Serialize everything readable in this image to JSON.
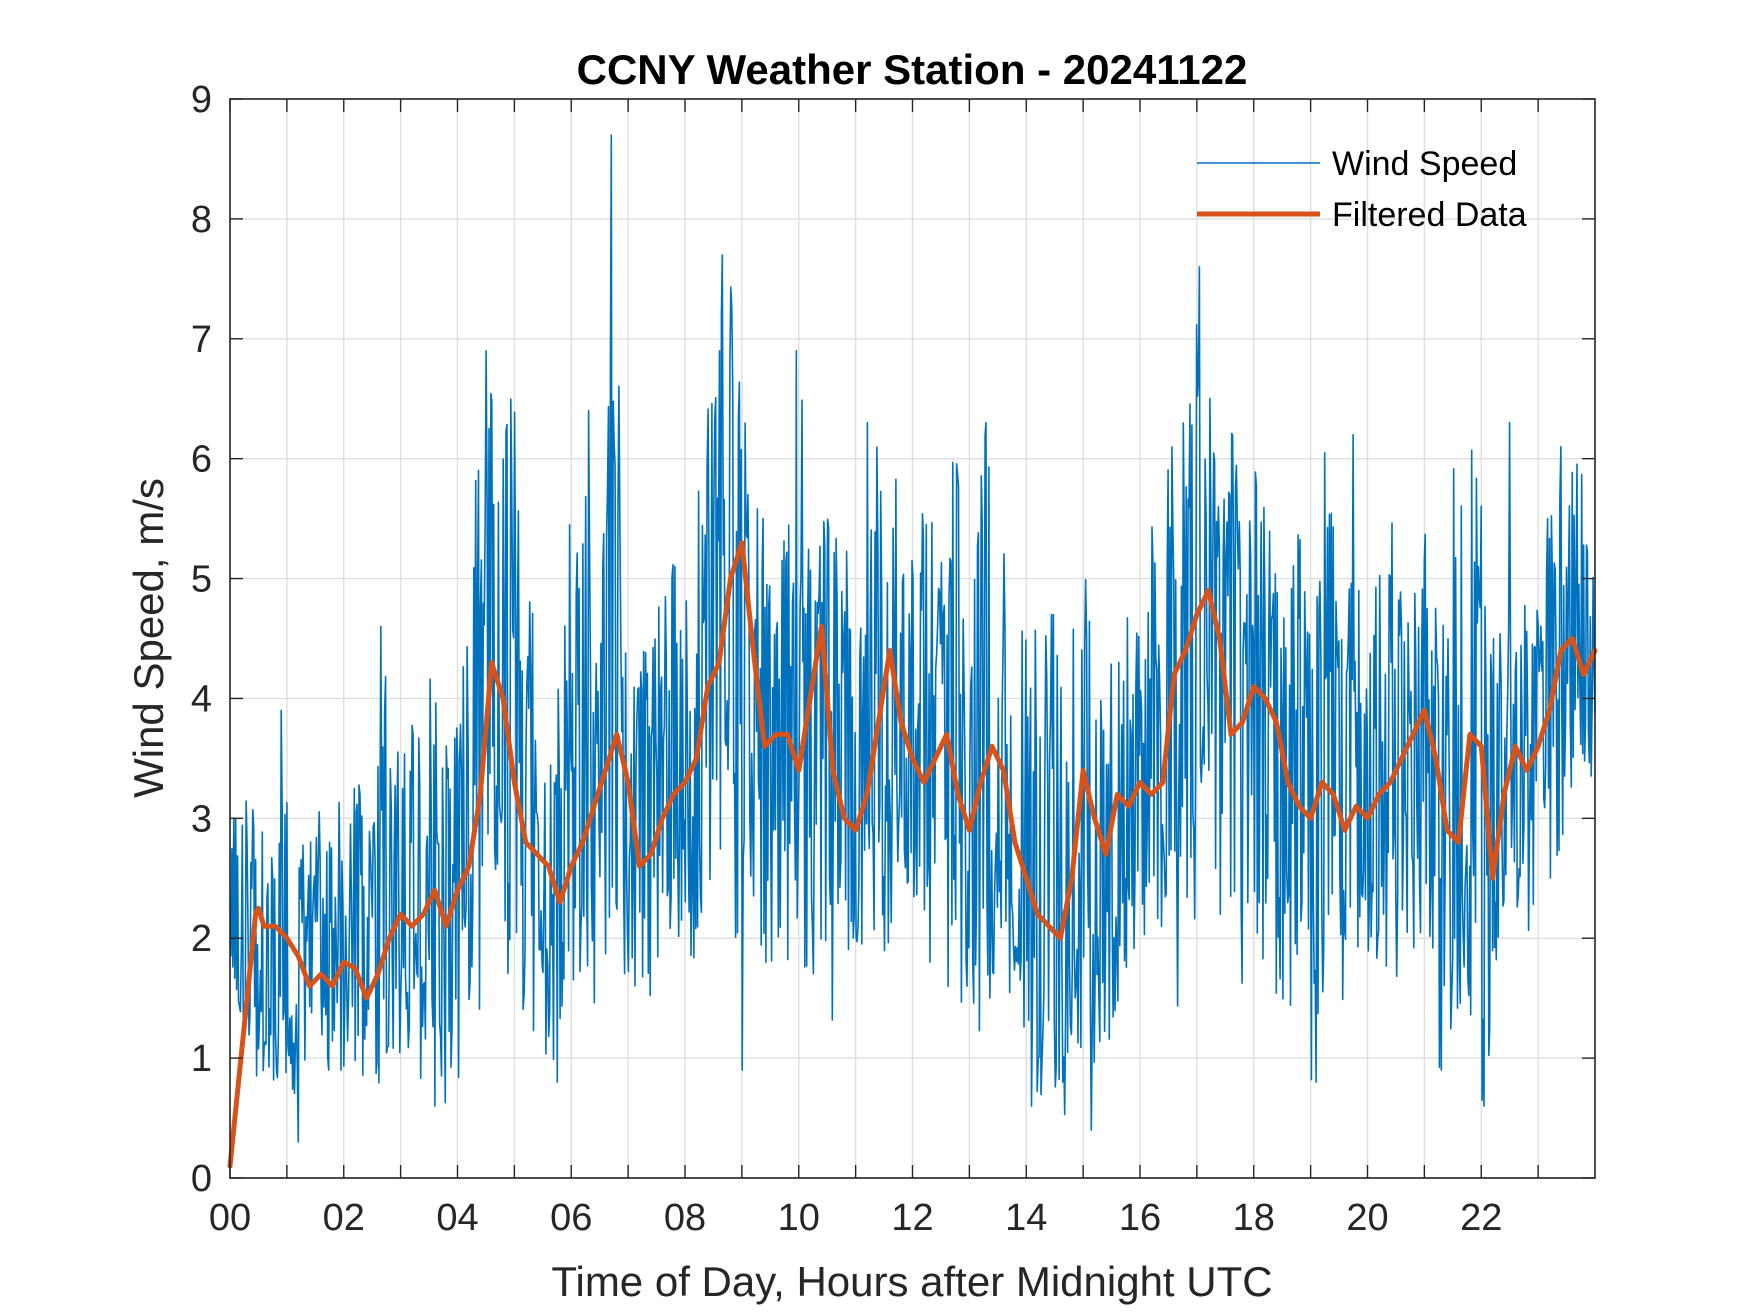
{
  "chart_data": {
    "type": "line",
    "title": "CCNY Weather Station - 20241122",
    "xlabel": "Time of Day, Hours after Midnight UTC",
    "ylabel": "Wind Speed, m/s",
    "xlim": [
      0,
      24
    ],
    "ylim": [
      0,
      9
    ],
    "xticks": [
      0,
      2,
      4,
      6,
      8,
      10,
      12,
      14,
      16,
      18,
      20,
      22
    ],
    "xtick_labels": [
      "00",
      "02",
      "04",
      "06",
      "08",
      "10",
      "12",
      "14",
      "16",
      "18",
      "20",
      "22"
    ],
    "yticks": [
      0,
      1,
      2,
      3,
      4,
      5,
      6,
      7,
      8,
      9
    ],
    "ytick_labels": [
      "0",
      "1",
      "2",
      "3",
      "4",
      "5",
      "6",
      "7",
      "8",
      "9"
    ],
    "grid": true,
    "legend_position": "top-right",
    "series": [
      {
        "name": "Wind Speed",
        "color": "#0072BD",
        "style": "thin",
        "envelope": {
          "x": [
            0,
            0.25,
            0.5,
            0.75,
            1.0,
            1.25,
            1.5,
            1.75,
            2.0,
            2.25,
            2.5,
            2.75,
            3.0,
            3.25,
            3.5,
            3.75,
            4.0,
            4.25,
            4.5,
            4.75,
            5.0,
            5.25,
            5.5,
            5.75,
            6.0,
            6.25,
            6.5,
            6.75,
            7.0,
            7.25,
            7.5,
            7.75,
            8.0,
            8.25,
            8.5,
            8.75,
            9.0,
            9.25,
            9.5,
            9.75,
            10.0,
            10.25,
            10.5,
            10.75,
            11.0,
            11.25,
            11.5,
            11.75,
            12.0,
            12.25,
            12.5,
            12.75,
            13.0,
            13.25,
            13.5,
            13.75,
            14.0,
            14.25,
            14.5,
            14.75,
            15.0,
            15.25,
            15.5,
            15.75,
            16.0,
            16.25,
            16.5,
            16.75,
            17.0,
            17.25,
            17.5,
            17.75,
            18.0,
            18.25,
            18.5,
            18.75,
            19.0,
            19.25,
            19.5,
            19.75,
            20.0,
            20.25,
            20.5,
            20.75,
            21.0,
            21.25,
            21.5,
            21.75,
            22.0,
            22.25,
            22.5,
            22.75,
            23.0,
            23.25,
            23.5,
            23.75,
            24.0
          ],
          "min": [
            1.9,
            1.2,
            0.8,
            0.6,
            0.9,
            0.5,
            0.9,
            0.9,
            0.9,
            0.8,
            0.7,
            0.9,
            1.0,
            0.9,
            0.7,
            0.6,
            0.8,
            1.3,
            1.5,
            1.4,
            1.2,
            1.3,
            1.1,
            0.8,
            1.4,
            1.3,
            1.5,
            1.1,
            1.2,
            1.3,
            1.7,
            1.8,
            1.9,
            1.8,
            2.5,
            2.4,
            1.4,
            1.0,
            1.5,
            1.8,
            1.9,
            1.4,
            1.1,
            1.7,
            1.8,
            1.8,
            1.9,
            1.8,
            1.8,
            1.5,
            1.8,
            1.4,
            1.3,
            1.2,
            1.3,
            1.3,
            0.8,
            0.7,
            0.6,
            0.5,
            1.2,
            0.4,
            1.3,
            1.7,
            1.6,
            1.6,
            1.5,
            1.4,
            2.3,
            2.2,
            2.2,
            1.5,
            1.9,
            1.6,
            1.5,
            1.4,
            0.8,
            1.2,
            1.4,
            1.5,
            1.9,
            1.8,
            1.7,
            1.4,
            1.6,
            0.9,
            1.3,
            1.6,
            0.6,
            1.4,
            2.1,
            2.1,
            2.0,
            2.5,
            3.0,
            3.1,
            3.2
          ],
          "max": [
            3.2,
            3.4,
            3.2,
            2.8,
            3.9,
            2.9,
            3.0,
            3.2,
            3.1,
            3.3,
            3.0,
            4.6,
            3.4,
            3.9,
            4.2,
            3.7,
            4.1,
            5.4,
            6.9,
            5.9,
            6.7,
            4.9,
            4.6,
            4.3,
            5.6,
            6.4,
            4.5,
            8.7,
            5.3,
            4.6,
            4.7,
            5.1,
            5.2,
            5.8,
            6.9,
            7.7,
            6.5,
            5.6,
            5.4,
            5.6,
            6.9,
            5.4,
            5.5,
            5.3,
            5.1,
            6.3,
            5.9,
            5.9,
            5.4,
            5.6,
            5.3,
            6.1,
            4.7,
            6.3,
            5.3,
            5.2,
            4.9,
            4.7,
            4.7,
            4.3,
            5.2,
            4.6,
            4.6,
            4.7,
            4.5,
            5.6,
            6.0,
            6.4,
            7.6,
            6.4,
            6.3,
            6.1,
            5.9,
            5.8,
            5.6,
            5.4,
            5.1,
            6.2,
            5.3,
            4.9,
            4.9,
            5.1,
            5.6,
            5.0,
            5.5,
            4.8,
            5.9,
            6.3,
            5.6,
            4.8,
            5.1,
            4.8,
            5.3,
            5.6,
            6.1,
            5.9,
            5.4
          ],
          "peaks": [
            [
              6.7,
              8.7
            ],
            [
              8.65,
              7.7
            ],
            [
              17.05,
              7.6
            ],
            [
              4.5,
              6.9
            ],
            [
              8.6,
              6.9
            ],
            [
              9.95,
              6.9
            ],
            [
              6.3,
              6.4
            ],
            [
              22.5,
              6.3
            ],
            [
              23.4,
              6.1
            ],
            [
              11.2,
              6.3
            ],
            [
              13.3,
              6.3
            ],
            [
              2.65,
              4.6
            ],
            [
              0.9,
              3.9
            ],
            [
              19.75,
              6.2
            ]
          ],
          "troughs": [
            [
              1.2,
              0.3
            ],
            [
              3.6,
              0.6
            ],
            [
              14.1,
              0.6
            ],
            [
              15.15,
              0.4
            ],
            [
              22.05,
              0.6
            ],
            [
              9.0,
              0.9
            ],
            [
              19.1,
              0.8
            ],
            [
              5.75,
              0.8
            ],
            [
              21.3,
              0.9
            ]
          ],
          "sample_count": 1440
        }
      },
      {
        "name": "Filtered Data",
        "color": "#D95319",
        "style": "thick",
        "x": [
          0.0,
          0.15,
          0.3,
          0.45,
          0.5,
          0.6,
          0.8,
          1.0,
          1.2,
          1.4,
          1.6,
          1.8,
          2.0,
          2.2,
          2.4,
          2.6,
          2.8,
          3.0,
          3.2,
          3.4,
          3.6,
          3.8,
          4.0,
          4.2,
          4.4,
          4.6,
          4.8,
          5.0,
          5.2,
          5.4,
          5.6,
          5.8,
          6.0,
          6.2,
          6.4,
          6.6,
          6.8,
          7.0,
          7.2,
          7.4,
          7.6,
          7.8,
          8.0,
          8.2,
          8.4,
          8.6,
          8.8,
          9.0,
          9.2,
          9.4,
          9.6,
          9.8,
          10.0,
          10.2,
          10.4,
          10.6,
          10.8,
          11.0,
          11.2,
          11.4,
          11.6,
          11.8,
          12.0,
          12.2,
          12.4,
          12.6,
          12.8,
          13.0,
          13.2,
          13.4,
          13.6,
          13.8,
          14.0,
          14.2,
          14.4,
          14.6,
          14.8,
          15.0,
          15.2,
          15.4,
          15.6,
          15.8,
          16.0,
          16.2,
          16.4,
          16.6,
          16.8,
          17.0,
          17.2,
          17.4,
          17.6,
          17.8,
          18.0,
          18.2,
          18.4,
          18.6,
          18.8,
          19.0,
          19.2,
          19.4,
          19.6,
          19.8,
          20.0,
          20.2,
          20.4,
          20.6,
          20.8,
          21.0,
          21.2,
          21.4,
          21.6,
          21.8,
          22.0,
          22.2,
          22.4,
          22.6,
          22.8,
          23.0,
          23.2,
          23.4,
          23.6,
          23.8,
          24.0
        ],
        "y": [
          0.1,
          0.8,
          1.5,
          2.2,
          2.25,
          2.1,
          2.1,
          2.0,
          1.85,
          1.6,
          1.7,
          1.6,
          1.8,
          1.75,
          1.5,
          1.7,
          2.0,
          2.2,
          2.1,
          2.2,
          2.4,
          2.1,
          2.4,
          2.6,
          3.2,
          4.3,
          4.0,
          3.3,
          2.8,
          2.7,
          2.6,
          2.3,
          2.6,
          2.8,
          3.1,
          3.4,
          3.7,
          3.3,
          2.6,
          2.7,
          3.0,
          3.2,
          3.3,
          3.5,
          4.1,
          4.3,
          5.0,
          5.3,
          4.4,
          3.6,
          3.7,
          3.7,
          3.4,
          4.0,
          4.6,
          3.4,
          3.0,
          2.9,
          3.2,
          3.8,
          4.4,
          3.8,
          3.5,
          3.3,
          3.5,
          3.7,
          3.2,
          2.9,
          3.3,
          3.6,
          3.4,
          2.8,
          2.5,
          2.2,
          2.1,
          2.0,
          2.5,
          3.4,
          3.0,
          2.7,
          3.2,
          3.1,
          3.3,
          3.2,
          3.3,
          4.2,
          4.4,
          4.7,
          4.9,
          4.5,
          3.7,
          3.8,
          4.1,
          4.0,
          3.8,
          3.3,
          3.1,
          3.0,
          3.3,
          3.2,
          2.9,
          3.1,
          3.0,
          3.2,
          3.3,
          3.5,
          3.7,
          3.9,
          3.5,
          2.9,
          2.8,
          3.7,
          3.6,
          2.5,
          3.2,
          3.6,
          3.4,
          3.6,
          3.9,
          4.4,
          4.5,
          4.2,
          4.4
        ]
      }
    ]
  }
}
